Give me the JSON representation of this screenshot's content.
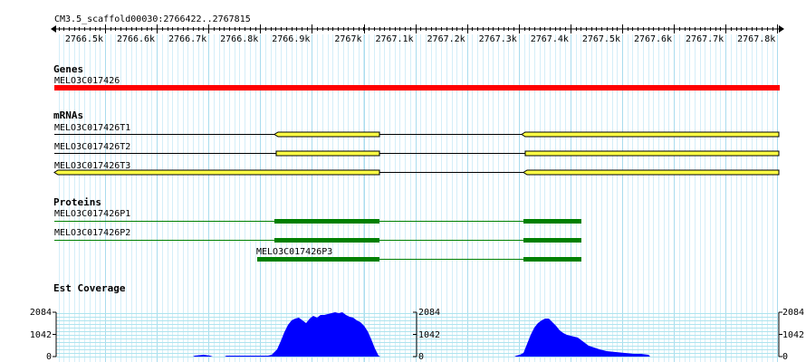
{
  "scale": {
    "title": "CM3.5_scaffold00030:2766422..2767815",
    "ticks": [
      "2766.5k",
      "2766.6k",
      "2766.7k",
      "2766.8k",
      "2766.9k",
      "2767k",
      "2767.1k",
      "2767.2k",
      "2767.3k",
      "2767.4k",
      "2767.5k",
      "2767.6k",
      "2767.7k",
      "2767.8k"
    ]
  },
  "tracks": {
    "genes": {
      "title": "Genes",
      "feature": "MELO3C017426",
      "color": "#ff0000"
    },
    "mrnas": {
      "title": "mRNAs",
      "color": "#ffff44",
      "items": [
        {
          "label": "MELO3C017426T1"
        },
        {
          "label": "MELO3C017426T2"
        },
        {
          "label": "MELO3C017426T3"
        }
      ]
    },
    "proteins": {
      "title": "Proteins",
      "color": "#008000",
      "items": [
        {
          "label": "MELO3C017426P1"
        },
        {
          "label": "MELO3C017426P2"
        },
        {
          "label": "MELO3C017426P3"
        }
      ]
    },
    "coverage": {
      "title": "Est Coverage",
      "y_max": "2084",
      "y_mid": "1042",
      "y_min": "0",
      "color": "#0000ff"
    }
  }
}
